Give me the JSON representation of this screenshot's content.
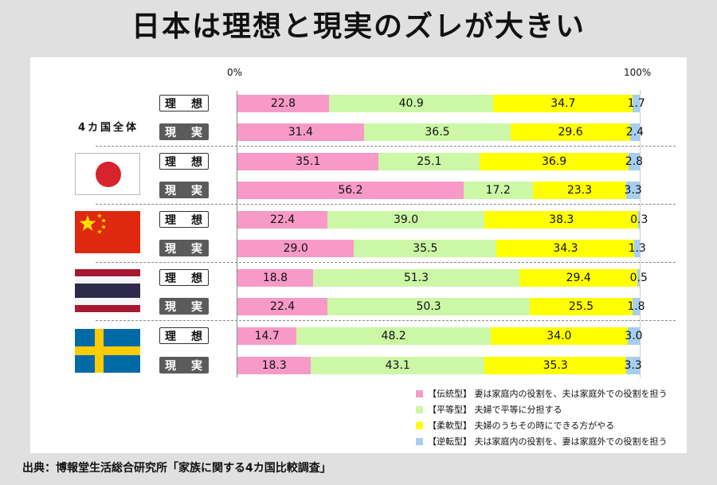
{
  "title": "日本は理想と現実のズレが大きい",
  "source": "出典：博報堂生活総合研究所「家族に関する4カ国比較調査」",
  "axis": {
    "min_label": "0%",
    "max_label": "100%"
  },
  "labels": {
    "ideal": [
      "理",
      "想"
    ],
    "real": [
      "現",
      "実"
    ]
  },
  "group_all_name": "4カ国全体",
  "colors": {
    "traditional": "#f79ac7",
    "equal": "#ccf7a6",
    "flexible": "#ffff00",
    "reverse": "#a6cef0"
  },
  "legend": [
    {
      "key": "traditional",
      "text": "【伝統型】 妻は家庭内の役割を、夫は家庭外での役割を担う"
    },
    {
      "key": "equal",
      "text": "【平等型】 夫婦で平等に分担する"
    },
    {
      "key": "flexible",
      "text": "【柔軟型】 夫婦のうちその時にできる方がやる"
    },
    {
      "key": "reverse",
      "text": "【逆転型】 夫は家庭内の役割を、妻は家庭外での役割を担う"
    }
  ],
  "flags": [
    "japan-flag",
    "china-flag",
    "thailand-flag",
    "sweden-flag"
  ],
  "chart_data": {
    "type": "bar",
    "stacked": true,
    "orientation": "horizontal",
    "title": "日本は理想と現実のズレが大きい",
    "xlim": [
      0,
      100
    ],
    "series_names": [
      "【伝統型】",
      "【平等型】",
      "【柔軟型】",
      "【逆転型】"
    ],
    "groups": [
      {
        "name": "4カ国全体",
        "rows": [
          {
            "type": "理想",
            "values": [
              22.8,
              40.9,
              34.7,
              1.7
            ]
          },
          {
            "type": "現実",
            "values": [
              31.4,
              36.5,
              29.6,
              2.4
            ]
          }
        ]
      },
      {
        "name": "日本",
        "rows": [
          {
            "type": "理想",
            "values": [
              35.1,
              25.1,
              36.9,
              2.8
            ]
          },
          {
            "type": "現実",
            "values": [
              56.2,
              17.2,
              23.3,
              3.3
            ]
          }
        ]
      },
      {
        "name": "中国",
        "rows": [
          {
            "type": "理想",
            "values": [
              22.4,
              39.0,
              38.3,
              0.3
            ]
          },
          {
            "type": "現実",
            "values": [
              29.0,
              35.5,
              34.3,
              1.3
            ]
          }
        ]
      },
      {
        "name": "タイ",
        "rows": [
          {
            "type": "理想",
            "values": [
              18.8,
              51.3,
              29.4,
              0.5
            ]
          },
          {
            "type": "現実",
            "values": [
              22.4,
              50.3,
              25.5,
              1.8
            ]
          }
        ]
      },
      {
        "name": "スウェーデン",
        "rows": [
          {
            "type": "理想",
            "values": [
              14.7,
              48.2,
              34.0,
              3.0
            ]
          },
          {
            "type": "現実",
            "values": [
              18.3,
              43.1,
              35.3,
              3.3
            ]
          }
        ]
      }
    ]
  }
}
